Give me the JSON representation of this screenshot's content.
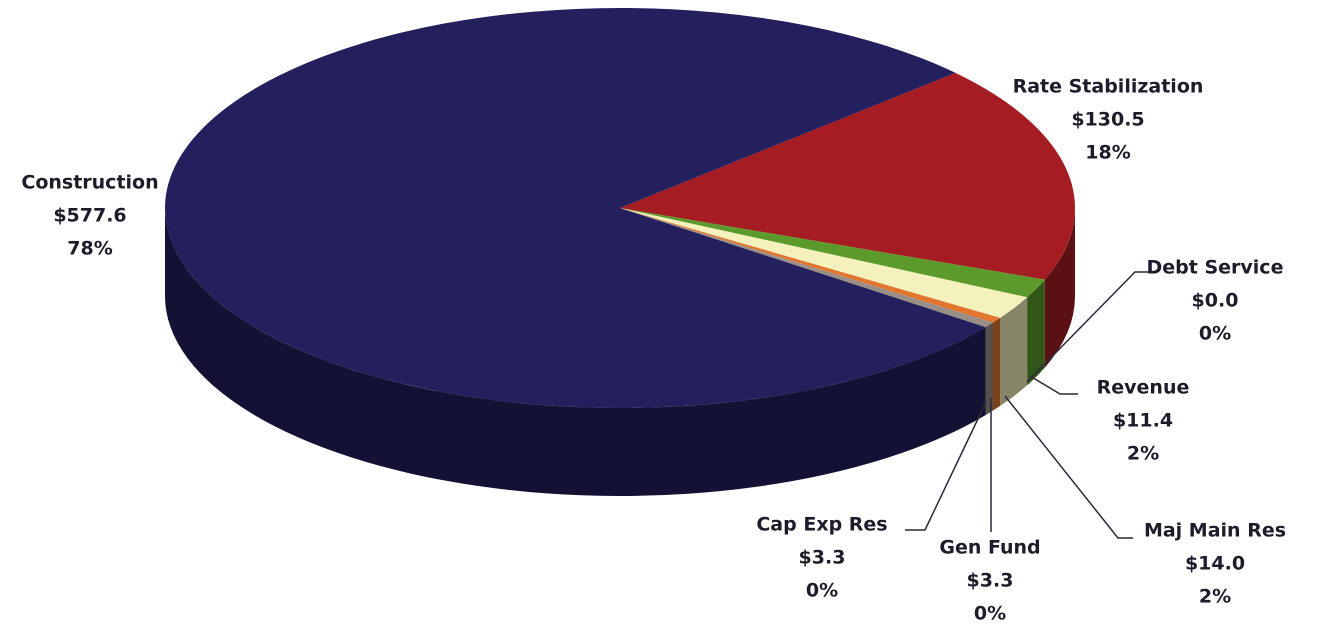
{
  "chart_data": {
    "type": "pie3d",
    "categories": [
      "Rate Stabilization",
      "Debt Service",
      "Revenue",
      "Maj  Main Res",
      "Gen Fund",
      "Cap Exp Res",
      "Construction"
    ],
    "values": [
      130.5,
      0.0,
      11.4,
      14.0,
      3.3,
      3.3,
      577.6
    ],
    "value_labels": [
      "$130.5",
      "$0.0",
      "$11.4",
      "$14.0",
      "$3.3",
      "$3.3",
      "$577.6"
    ],
    "percent_labels": [
      "18%",
      "0%",
      "2%",
      "2%",
      "0%",
      "0%",
      "78%"
    ],
    "colors": [
      "#a51d22",
      "#1a1a1a",
      "#5b9a2b",
      "#f4f1bc",
      "#e2762f",
      "#9a8f86",
      "#24205e"
    ]
  }
}
